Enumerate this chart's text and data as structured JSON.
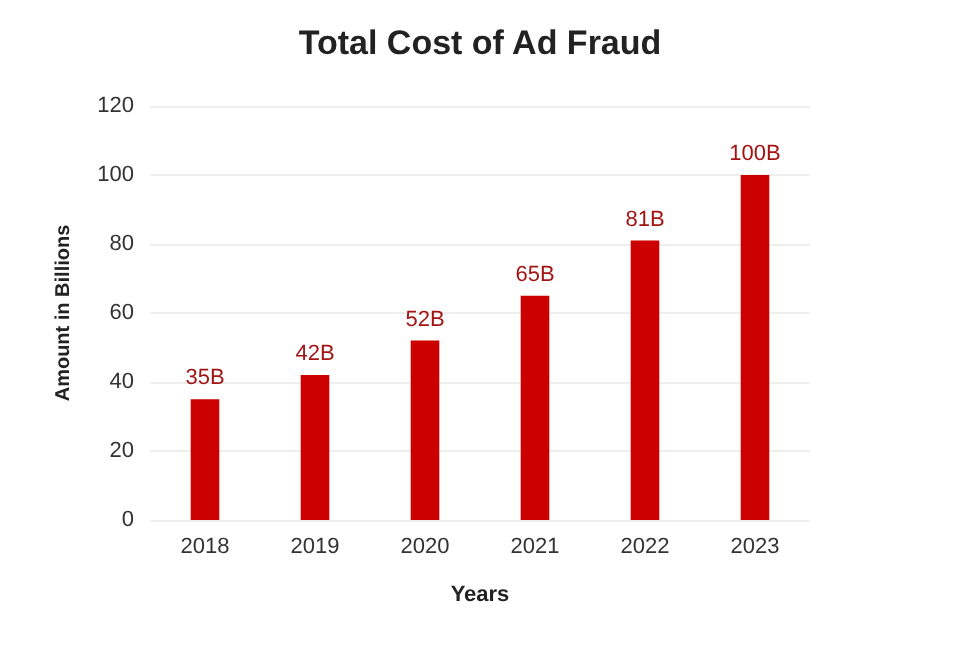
{
  "chart_data": {
    "type": "bar",
    "title": "Total Cost of Ad Fraud",
    "xlabel": "Years",
    "ylabel": "Amount in Billions",
    "categories": [
      "2018",
      "2019",
      "2020",
      "2021",
      "2022",
      "2023"
    ],
    "values": [
      35,
      42,
      52,
      65,
      81,
      100
    ],
    "color": "#cc0000",
    "value_labels": [
      "35B",
      "42B",
      "52B",
      "65B",
      "81B",
      "100B"
    ],
    "ylim": [
      0,
      120
    ],
    "yticks": [
      0,
      20,
      40,
      60,
      80,
      100,
      120
    ],
    "grid": "y"
  }
}
